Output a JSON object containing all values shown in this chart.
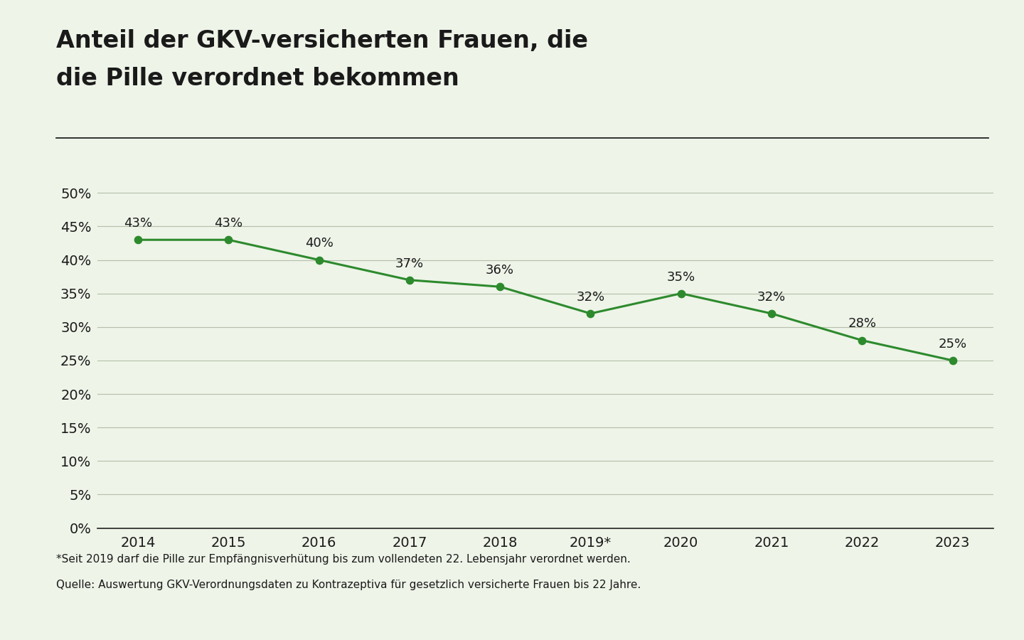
{
  "title_line1": "Anteil der GKV-versicherten Frauen, die",
  "title_line2": "die Pille verordnet bekommen",
  "years": [
    "2014",
    "2015",
    "2016",
    "2017",
    "2018",
    "2019*",
    "2020",
    "2021",
    "2022",
    "2023"
  ],
  "values": [
    43,
    43,
    40,
    37,
    36,
    32,
    35,
    32,
    28,
    25
  ],
  "line_color": "#2d8a2d",
  "background_color": "#eef4e8",
  "grid_color": "#b5bfaa",
  "text_color": "#1a1a1a",
  "yticks": [
    0,
    5,
    10,
    15,
    20,
    25,
    30,
    35,
    40,
    45,
    50
  ],
  "ylim": [
    0,
    53
  ],
  "footnote1": "*Seit 2019 darf die Pille zur Empfängnisverhütung bis zum vollendeten 22. Lebensjahr verordnet werden.",
  "footnote2": "Quelle: Auswertung GKV-Verordnungsdaten zu Kontrazeptiva für gesetzlich versicherte Frauen bis 22 Jahre.",
  "title_fontsize": 24,
  "tick_fontsize": 14,
  "footnote_fontsize": 11,
  "data_label_fontsize": 13,
  "separator_color": "#222222",
  "dot_color": "#2d8a2d"
}
